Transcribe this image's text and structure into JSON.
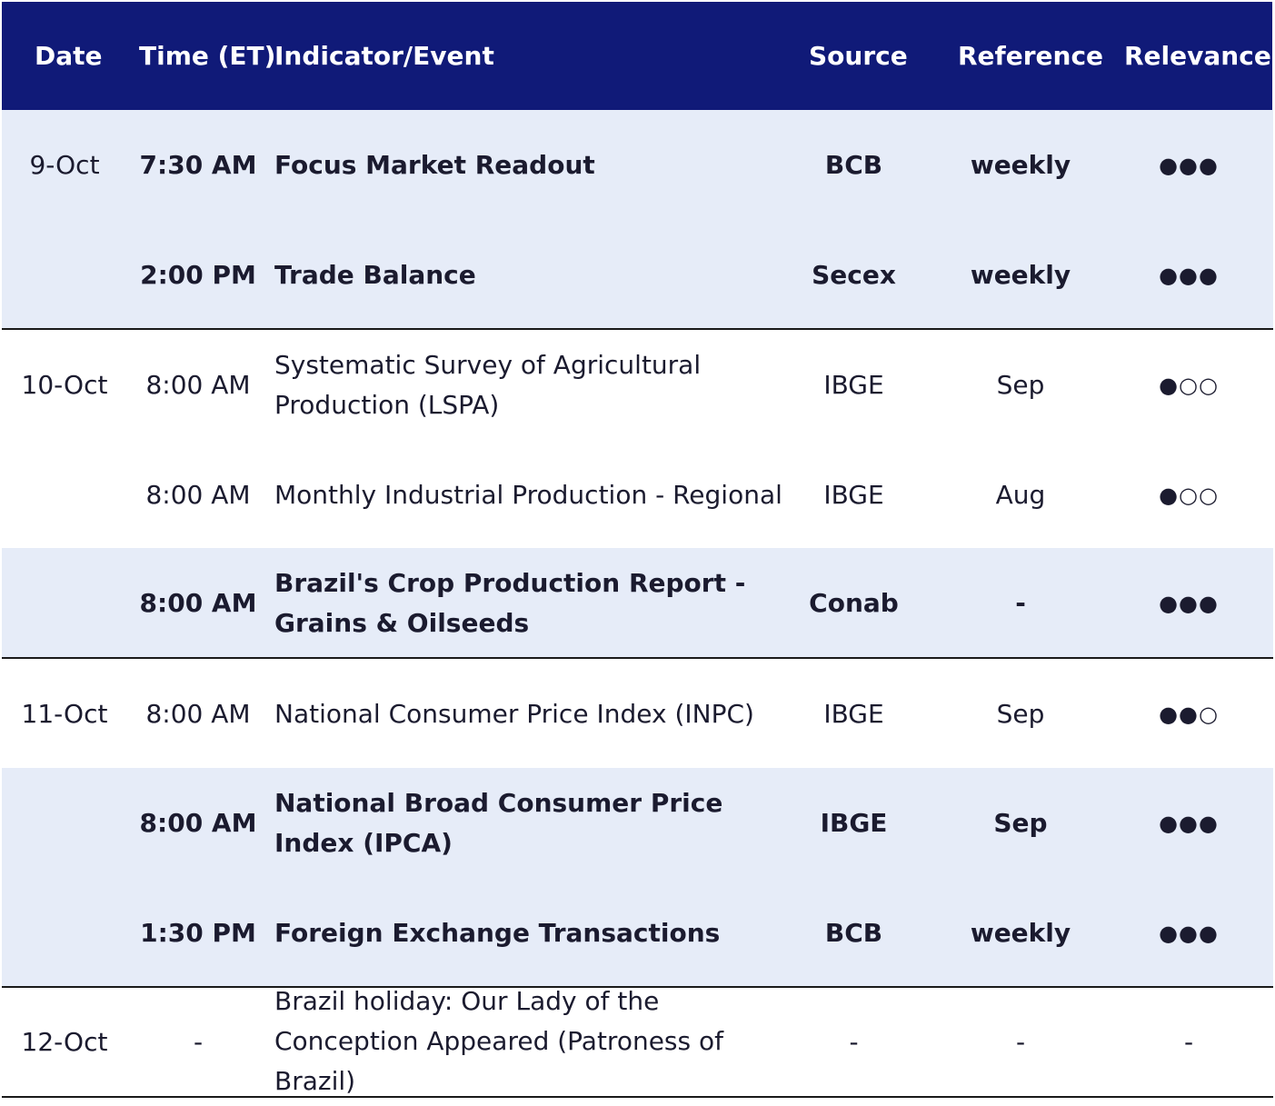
{
  "header": {
    "date": "Date",
    "time": "Time (ET)",
    "event": "Indicator/Event",
    "source": "Source",
    "reference": "Reference",
    "relevance": "Relevance"
  },
  "rows": [
    {
      "date": "9-Oct",
      "time": "7:30 AM",
      "event": "Focus Market Readout",
      "source": "BCB",
      "reference": "weekly",
      "relevance": "●●●",
      "highlight": true
    },
    {
      "date": "",
      "time": "2:00 PM",
      "event": "Trade Balance",
      "source": "Secex",
      "reference": "weekly",
      "relevance": "●●●",
      "highlight": true
    },
    {
      "date": "10-Oct",
      "time": "8:00 AM",
      "event": "Systematic Survey of Agricultural Production (LSPA)",
      "source": "IBGE",
      "reference": "Sep",
      "relevance": "●○○",
      "highlight": false
    },
    {
      "date": "",
      "time": "8:00 AM",
      "event": "Monthly Industrial Production - Regional",
      "source": "IBGE",
      "reference": "Aug",
      "relevance": "●○○",
      "highlight": false
    },
    {
      "date": "",
      "time": "8:00 AM",
      "event": "Brazil's Crop Production Report - Grains & Oilseeds",
      "source": "Conab",
      "reference": "-",
      "relevance": "●●●",
      "highlight": true
    },
    {
      "date": "11-Oct",
      "time": "8:00 AM",
      "event": "National Consumer Price Index (INPC)",
      "source": "IBGE",
      "reference": "Sep",
      "relevance": "●●○",
      "highlight": false
    },
    {
      "date": "",
      "time": "8:00 AM",
      "event": "National Broad Consumer Price Index (IPCA)",
      "source": "IBGE",
      "reference": "Sep",
      "relevance": "●●●",
      "highlight": true
    },
    {
      "date": "",
      "time": "1:30 PM",
      "event": "Foreign Exchange Transactions",
      "source": "BCB",
      "reference": "weekly",
      "relevance": "●●●",
      "highlight": true
    },
    {
      "date": "12-Oct",
      "time": "-",
      "event": "Brazil holiday: Our Lady of the Conception Appeared (Patroness of Brazil)",
      "source": "-",
      "reference": "-",
      "relevance": "-",
      "highlight": false
    }
  ],
  "colors": {
    "header_bg": "#101a78",
    "highlight_bg": "#e6ecf8",
    "divider": "#1a1a1a"
  }
}
